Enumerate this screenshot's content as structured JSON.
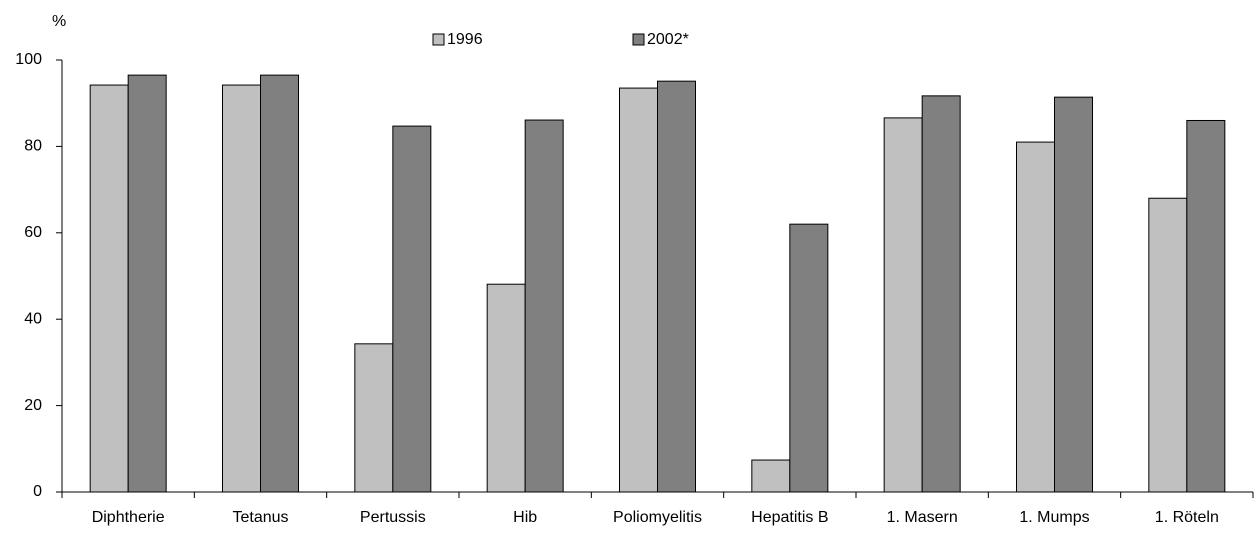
{
  "chart_data": {
    "type": "bar",
    "y_label": "%",
    "categories": [
      "Diphtherie",
      "Tetanus",
      "Pertussis",
      "Hib",
      "Poliomyelitis",
      "Hepatitis B",
      "1. Masern",
      "1. Mumps",
      "1. Röteln"
    ],
    "series": [
      {
        "name": "1996",
        "color": "#c0c0c0",
        "values": [
          94.2,
          94.2,
          34.3,
          48.1,
          93.5,
          7.4,
          86.6,
          81,
          68
        ]
      },
      {
        "name": "2002*",
        "color": "#808080",
        "values": [
          96.5,
          96.5,
          84.7,
          86.1,
          95.1,
          62,
          91.7,
          91.4,
          86
        ]
      }
    ],
    "ylim": [
      0,
      100
    ],
    "yticks": [
      0,
      20,
      40,
      60,
      80,
      100
    ],
    "grid": false,
    "legend": "top"
  }
}
